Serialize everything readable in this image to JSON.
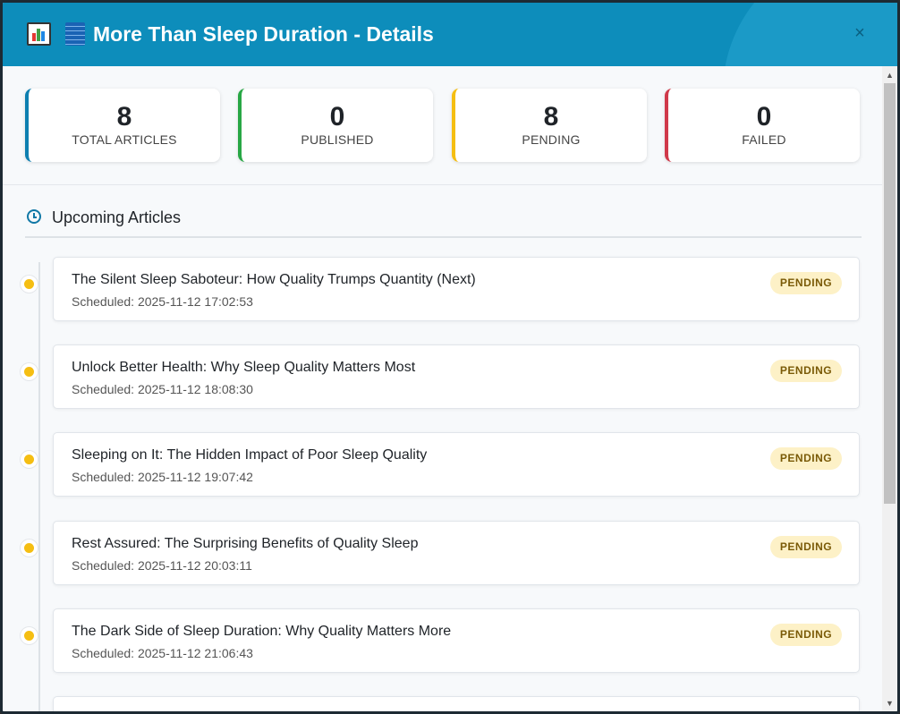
{
  "header": {
    "title": "More Than Sleep Duration - Details",
    "close_label": "×",
    "icons": [
      "bar-chart-icon",
      "list-icon",
      "close-icon"
    ]
  },
  "stats": [
    {
      "value": "8",
      "label": "TOTAL ARTICLES",
      "color": "#0d7fb0"
    },
    {
      "value": "0",
      "label": "PUBLISHED",
      "color": "#28a745"
    },
    {
      "value": "8",
      "label": "PENDING",
      "color": "#f5be12"
    },
    {
      "value": "0",
      "label": "FAILED",
      "color": "#d0394a"
    }
  ],
  "section": {
    "title": "Upcoming Articles",
    "icon": "clock-icon"
  },
  "articles": [
    {
      "title": "The Silent Sleep Saboteur: How Quality Trumps Quantity (Next)",
      "scheduled": "Scheduled: 2025-11-12 17:02:53",
      "status": "PENDING"
    },
    {
      "title": "Unlock Better Health: Why Sleep Quality Matters Most",
      "scheduled": "Scheduled: 2025-11-12 18:08:30",
      "status": "PENDING"
    },
    {
      "title": "Sleeping on It: The Hidden Impact of Poor Sleep Quality",
      "scheduled": "Scheduled: 2025-11-12 19:07:42",
      "status": "PENDING"
    },
    {
      "title": "Rest Assured: The Surprising Benefits of Quality Sleep",
      "scheduled": "Scheduled: 2025-11-12 20:03:11",
      "status": "PENDING"
    },
    {
      "title": "The Dark Side of Sleep Duration: Why Quality Matters More",
      "scheduled": "Scheduled: 2025-11-12 21:06:43",
      "status": "PENDING"
    }
  ],
  "colors": {
    "header_bg": "#0d8dbb",
    "pending_dot": "#f5be12",
    "pending_badge_bg": "#fdf1c7"
  }
}
